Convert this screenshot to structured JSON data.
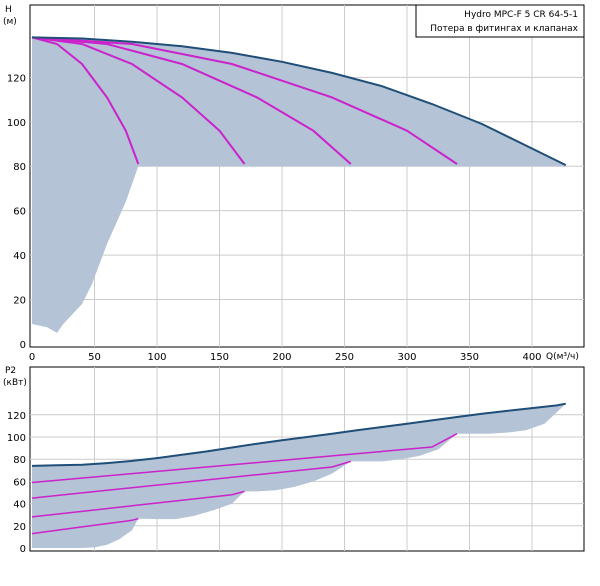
{
  "chart_data": [
    {
      "type": "line",
      "legend_title": "Hydro MPC-F 5 CR 64-5-1",
      "legend_subtitle": "Потера в фитингах и клапанах",
      "ylabel_line1": "H",
      "ylabel_line2": "(м)",
      "xlabel": "Q(м³/ч)",
      "xlim": [
        0,
        440
      ],
      "ylim": [
        0,
        140
      ],
      "x_ticks": [
        0,
        50,
        100,
        150,
        200,
        250,
        300,
        350,
        400
      ],
      "y_ticks": [
        0,
        20,
        40,
        60,
        80,
        100,
        120
      ],
      "grid": true,
      "colors": {
        "envelope": "#1f4e79",
        "pump_curves": "#cc22cc",
        "fill": "#b4c3d5"
      },
      "envelope": {
        "x": [
          0,
          40,
          80,
          120,
          160,
          200,
          240,
          280,
          320,
          360,
          400,
          427
        ],
        "y": [
          138,
          137.5,
          136,
          134,
          131,
          127,
          122,
          116,
          108,
          99,
          88,
          80.5
        ]
      },
      "pump_curves": [
        {
          "x": [
            0,
            20,
            40,
            60,
            75,
            85
          ],
          "y": [
            138,
            135,
            126,
            111,
            96,
            81
          ]
        },
        {
          "x": [
            0,
            40,
            80,
            120,
            150,
            170
          ],
          "y": [
            138,
            135,
            126,
            111,
            96,
            81
          ]
        },
        {
          "x": [
            0,
            60,
            120,
            180,
            225,
            255
          ],
          "y": [
            138,
            135,
            126,
            111,
            96,
            81
          ]
        },
        {
          "x": [
            0,
            80,
            160,
            240,
            300,
            340
          ],
          "y": [
            138,
            135,
            126,
            111,
            96,
            81
          ]
        }
      ],
      "npsh_bottom": {
        "x": [
          0,
          12,
          20,
          25,
          40,
          48,
          60,
          75,
          85
        ],
        "y": [
          9,
          7.5,
          5,
          9,
          18,
          27,
          45,
          64,
          80
        ]
      }
    },
    {
      "type": "line",
      "ylabel_line1": "P2",
      "ylabel_line2": "(кВт)",
      "xlim": [
        0,
        440
      ],
      "ylim": [
        0,
        140
      ],
      "y_ticks": [
        0,
        20,
        40,
        60,
        80,
        100,
        120
      ],
      "grid": true,
      "colors": {
        "envelope": "#1f4e79",
        "pump_curves": "#cc22cc",
        "fill": "#b4c3d5"
      },
      "envelope": {
        "x": [
          0,
          20,
          40,
          60,
          80,
          100,
          120,
          140,
          160,
          180,
          200,
          220,
          240,
          260,
          280,
          300,
          320,
          340,
          360,
          380,
          400,
          420,
          427
        ],
        "y": [
          74,
          74.5,
          75,
          76.5,
          78.5,
          81,
          84,
          87,
          90.5,
          94,
          97,
          100,
          103,
          106,
          109,
          112,
          115,
          118,
          121,
          123.5,
          126,
          128.5,
          130
        ]
      },
      "pump_curves": [
        {
          "x": [
            0,
            20,
            40,
            60,
            80,
            85
          ],
          "y": [
            13,
            16,
            19,
            22,
            25,
            26.5
          ]
        },
        {
          "x": [
            0,
            40,
            80,
            120,
            160,
            170
          ],
          "y": [
            28,
            33,
            38,
            43,
            48,
            51
          ]
        },
        {
          "x": [
            0,
            60,
            120,
            180,
            240,
            255
          ],
          "y": [
            45,
            52,
            59,
            66,
            73,
            78
          ]
        },
        {
          "x": [
            0,
            80,
            160,
            240,
            320,
            340
          ],
          "y": [
            59,
            67,
            75,
            83,
            91,
            103
          ]
        }
      ],
      "scallops": [
        {
          "x": [
            85,
            80,
            70,
            60,
            50,
            40
          ],
          "y": [
            26.5,
            16,
            8,
            3,
            0.5,
            0
          ]
        },
        {
          "x": [
            170,
            160,
            145,
            130,
            115,
            100
          ],
          "y": [
            51,
            40,
            34,
            29,
            26,
            26
          ]
        },
        {
          "x": [
            255,
            240,
            225,
            210,
            195,
            180
          ],
          "y": [
            78,
            67,
            60,
            55,
            52,
            51
          ]
        },
        {
          "x": [
            340,
            325,
            310,
            295,
            280,
            265
          ],
          "y": [
            103,
            89,
            83,
            80,
            78,
            78
          ]
        },
        {
          "x": [
            427,
            410,
            395,
            380,
            365,
            350
          ],
          "y": [
            130,
            112,
            106,
            104,
            103,
            103
          ]
        }
      ]
    }
  ]
}
